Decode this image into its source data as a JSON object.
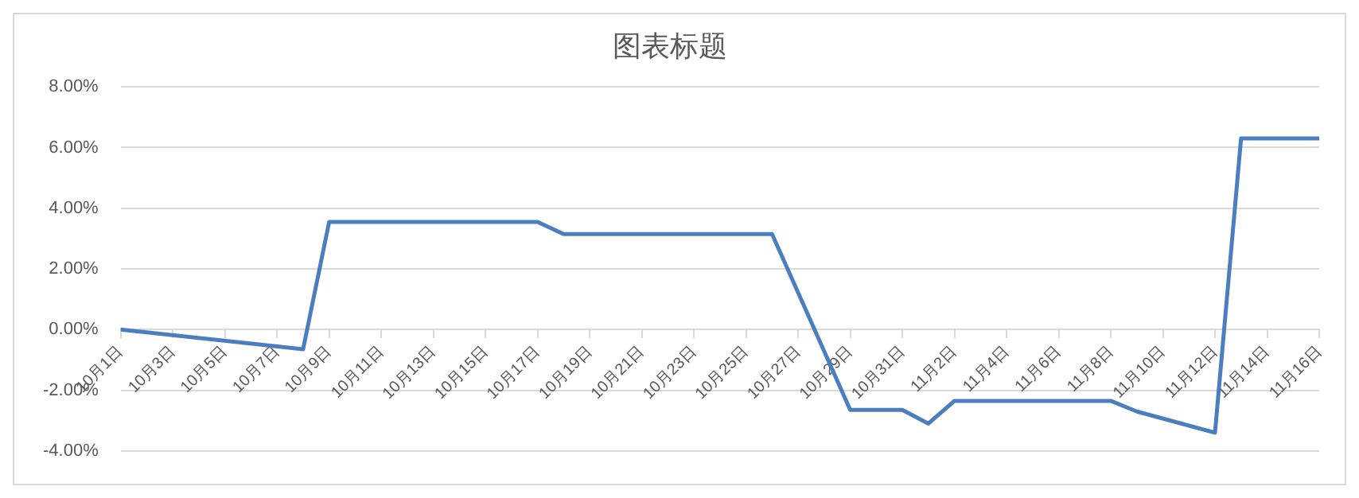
{
  "chart_data": {
    "type": "line",
    "title": "图表标题",
    "x": [
      "--10-01",
      "--10-08",
      "--10-09",
      "--10-17",
      "--10-18",
      "--10-26",
      "--10-29",
      "--10-31",
      "--11-01",
      "--11-02",
      "--11-08",
      "--11-09",
      "--11-12",
      "--11-13",
      "--11-16"
    ],
    "series": [
      {
        "color": "#4a7ebf",
        "values": [
          0.0,
          -0.65,
          3.55,
          3.55,
          3.15,
          3.15,
          -2.65,
          -2.65,
          -3.1,
          -2.35,
          -2.35,
          -2.7,
          -3.4,
          6.3,
          6.3
        ]
      }
    ],
    "xlim": [
      "--10-01",
      "--11-16"
    ],
    "xticks": [
      {
        "value": "--10-01",
        "label": "10月1日"
      },
      {
        "value": "--10-03",
        "label": "10月3日"
      },
      {
        "value": "--10-05",
        "label": "10月5日"
      },
      {
        "value": "--10-07",
        "label": "10月7日"
      },
      {
        "value": "--10-09",
        "label": "10月9日"
      },
      {
        "value": "--10-11",
        "label": "10月11日"
      },
      {
        "value": "--10-13",
        "label": "10月13日"
      },
      {
        "value": "--10-15",
        "label": "10月15日"
      },
      {
        "value": "--10-17",
        "label": "10月17日"
      },
      {
        "value": "--10-19",
        "label": "10月19日"
      },
      {
        "value": "--10-21",
        "label": "10月21日"
      },
      {
        "value": "--10-23",
        "label": "10月23日"
      },
      {
        "value": "--10-25",
        "label": "10月25日"
      },
      {
        "value": "--10-27",
        "label": "10月27日"
      },
      {
        "value": "--10-29",
        "label": "10月29日"
      },
      {
        "value": "--10-31",
        "label": "10月31日"
      },
      {
        "value": "--11-02",
        "label": "11月2日"
      },
      {
        "value": "--11-04",
        "label": "11月4日"
      },
      {
        "value": "--11-06",
        "label": "11月6日"
      },
      {
        "value": "--11-08",
        "label": "11月8日"
      },
      {
        "value": "--11-10",
        "label": "11月10日"
      },
      {
        "value": "--11-12",
        "label": "11月12日"
      },
      {
        "value": "--11-14",
        "label": "11月14日"
      },
      {
        "value": "--11-16",
        "label": "11月16日"
      }
    ],
    "ylim": [
      -4,
      8
    ],
    "yticks": [
      {
        "value": -4,
        "label": "-4.00%"
      },
      {
        "value": -2,
        "label": "-2.00%"
      },
      {
        "value": 0,
        "label": "0.00%"
      },
      {
        "value": 2,
        "label": "2.00%"
      },
      {
        "value": 4,
        "label": "4.00%"
      },
      {
        "value": 6,
        "label": "6.00%"
      },
      {
        "value": 8,
        "label": "8.00%"
      }
    ],
    "grid": "y",
    "legend": false,
    "marker": "none",
    "line_style": "solid"
  }
}
